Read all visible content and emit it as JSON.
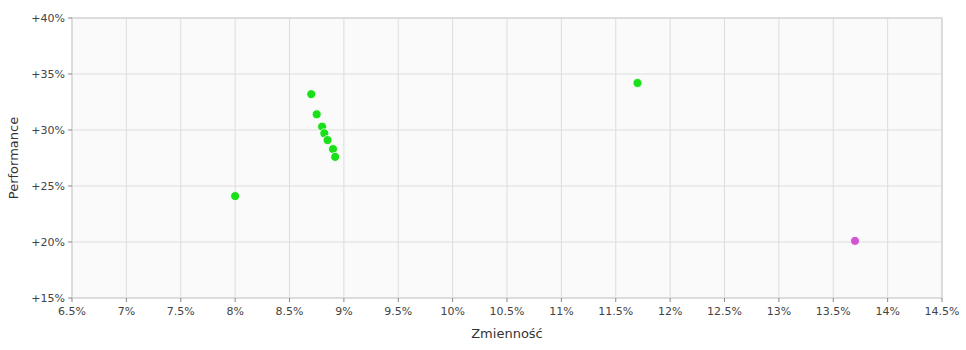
{
  "chart_data": {
    "type": "scatter",
    "xlabel": "Zmienność",
    "ylabel": "Performance",
    "xlim": [
      0.065,
      0.145
    ],
    "ylim": [
      0.15,
      0.4
    ],
    "xticks": [
      {
        "value": 0.065,
        "label": "6.5%"
      },
      {
        "value": 0.07,
        "label": "7%"
      },
      {
        "value": 0.075,
        "label": "7.5%"
      },
      {
        "value": 0.08,
        "label": "8%"
      },
      {
        "value": 0.085,
        "label": "8.5%"
      },
      {
        "value": 0.09,
        "label": "9%"
      },
      {
        "value": 0.095,
        "label": "9.5%"
      },
      {
        "value": 0.1,
        "label": "10%"
      },
      {
        "value": 0.105,
        "label": "10.5%"
      },
      {
        "value": 0.11,
        "label": "11%"
      },
      {
        "value": 0.115,
        "label": "11.5%"
      },
      {
        "value": 0.12,
        "label": "12%"
      },
      {
        "value": 0.125,
        "label": "12.5%"
      },
      {
        "value": 0.13,
        "label": "13%"
      },
      {
        "value": 0.135,
        "label": "13.5%"
      },
      {
        "value": 0.14,
        "label": "14%"
      },
      {
        "value": 0.145,
        "label": "14.5%"
      }
    ],
    "yticks": [
      {
        "value": 0.15,
        "label": "+15%"
      },
      {
        "value": 0.2,
        "label": "+20%"
      },
      {
        "value": 0.25,
        "label": "+25%"
      },
      {
        "value": 0.3,
        "label": "+30%"
      },
      {
        "value": 0.35,
        "label": "+35%"
      },
      {
        "value": 0.4,
        "label": "+40%"
      }
    ],
    "grid": true,
    "series": [
      {
        "color": "#00dd00",
        "x": [
          0.08,
          0.087,
          0.0875,
          0.088,
          0.0882,
          0.0885,
          0.089,
          0.0892,
          0.117
        ],
        "values": [
          0.241,
          0.332,
          0.314,
          0.303,
          0.297,
          0.291,
          0.283,
          0.276,
          0.342
        ]
      },
      {
        "color": "#cc44cc",
        "x": [
          0.137
        ],
        "values": [
          0.201
        ]
      }
    ]
  }
}
